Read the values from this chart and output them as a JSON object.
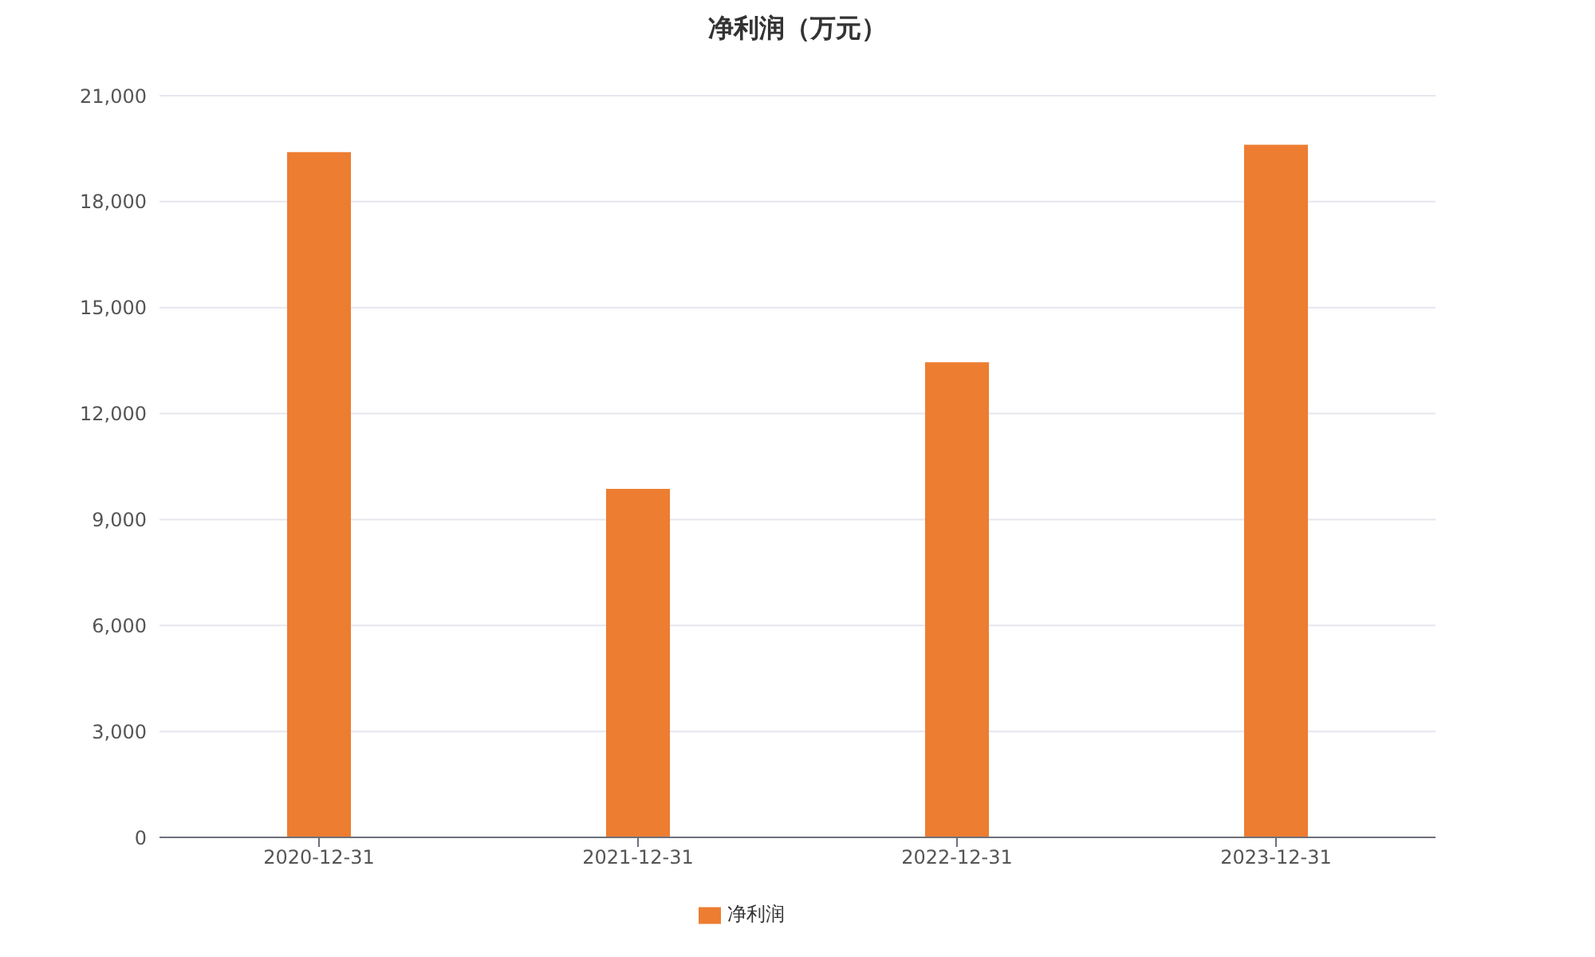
{
  "chart_data": {
    "type": "bar",
    "title": "净利润（万元）",
    "categories": [
      "2020-12-31",
      "2021-12-31",
      "2022-12-31",
      "2023-12-31"
    ],
    "series": [
      {
        "name": "净利润",
        "color": "#ed7d31",
        "values": [
          19400,
          9870,
          13450,
          19610
        ]
      }
    ],
    "ylim": [
      0,
      21000
    ],
    "yticks": [
      0,
      {
        "value": 3000,
        "label": "3,000"
      },
      {
        "value": 6000,
        "label": "6,000"
      },
      {
        "value": 9000,
        "label": "9,000"
      },
      {
        "value": 12000,
        "label": "12,000"
      },
      {
        "value": 15000,
        "label": "15,000"
      },
      {
        "value": 18000,
        "label": "18,000"
      },
      {
        "value": 21000,
        "label": "21,000"
      }
    ],
    "grid": "y",
    "legend": "bottom"
  }
}
